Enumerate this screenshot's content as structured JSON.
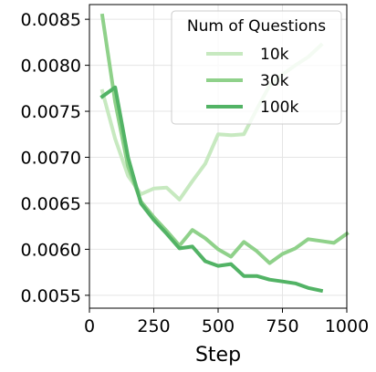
{
  "chart_data": {
    "type": "line",
    "xlabel": "Step",
    "ylabel": "",
    "xlim": [
      0,
      1000
    ],
    "ylim": [
      0.00536,
      0.00866
    ],
    "xticks": [
      0,
      250,
      500,
      750,
      1000
    ],
    "xtick_labels": [
      "0",
      "250",
      "500",
      "750",
      "1000"
    ],
    "yticks": [
      0.0055,
      0.006,
      0.0065,
      0.007,
      0.0075,
      0.008,
      0.0085
    ],
    "ytick_labels": [
      "0.0055",
      "0.0060",
      "0.0065",
      "0.0070",
      "0.0075",
      "0.0080",
      "0.0085"
    ],
    "grid": true,
    "legend": {
      "title": "Num of Questions",
      "placement": "top-right"
    },
    "series": [
      {
        "name": "10k",
        "color": "#c7e9c0",
        "x": [
          50,
          100,
          150,
          200,
          250,
          300,
          350,
          400,
          450,
          500,
          550,
          600,
          650,
          700,
          750,
          800,
          850,
          900
        ],
        "y": [
          0.00772,
          0.0072,
          0.0068,
          0.0066,
          0.00666,
          0.00667,
          0.00654,
          0.00674,
          0.00693,
          0.00725,
          0.00724,
          0.00725,
          0.00752,
          0.00778,
          0.0079,
          0.008,
          0.00809,
          0.00822
        ]
      },
      {
        "name": "30k",
        "color": "#8fd18a",
        "x": [
          50,
          100,
          150,
          200,
          250,
          300,
          350,
          400,
          450,
          500,
          550,
          600,
          650,
          700,
          750,
          800,
          850,
          900,
          950,
          1000
        ],
        "y": [
          0.00854,
          0.0076,
          0.0069,
          0.00652,
          0.00635,
          0.0062,
          0.00604,
          0.00621,
          0.00612,
          0.006,
          0.00592,
          0.00608,
          0.00598,
          0.00585,
          0.00595,
          0.00601,
          0.00611,
          0.00609,
          0.00607,
          0.00617
        ]
      },
      {
        "name": "100k",
        "color": "#52b365",
        "x": [
          50,
          100,
          150,
          200,
          250,
          300,
          350,
          400,
          450,
          500,
          550,
          600,
          650,
          700,
          750,
          800,
          850,
          900
        ],
        "y": [
          0.00766,
          0.00776,
          0.007,
          0.0065,
          0.00632,
          0.00617,
          0.00601,
          0.00603,
          0.00587,
          0.00582,
          0.00584,
          0.00571,
          0.00571,
          0.00567,
          0.00565,
          0.00563,
          0.00558,
          0.00555
        ]
      }
    ]
  }
}
